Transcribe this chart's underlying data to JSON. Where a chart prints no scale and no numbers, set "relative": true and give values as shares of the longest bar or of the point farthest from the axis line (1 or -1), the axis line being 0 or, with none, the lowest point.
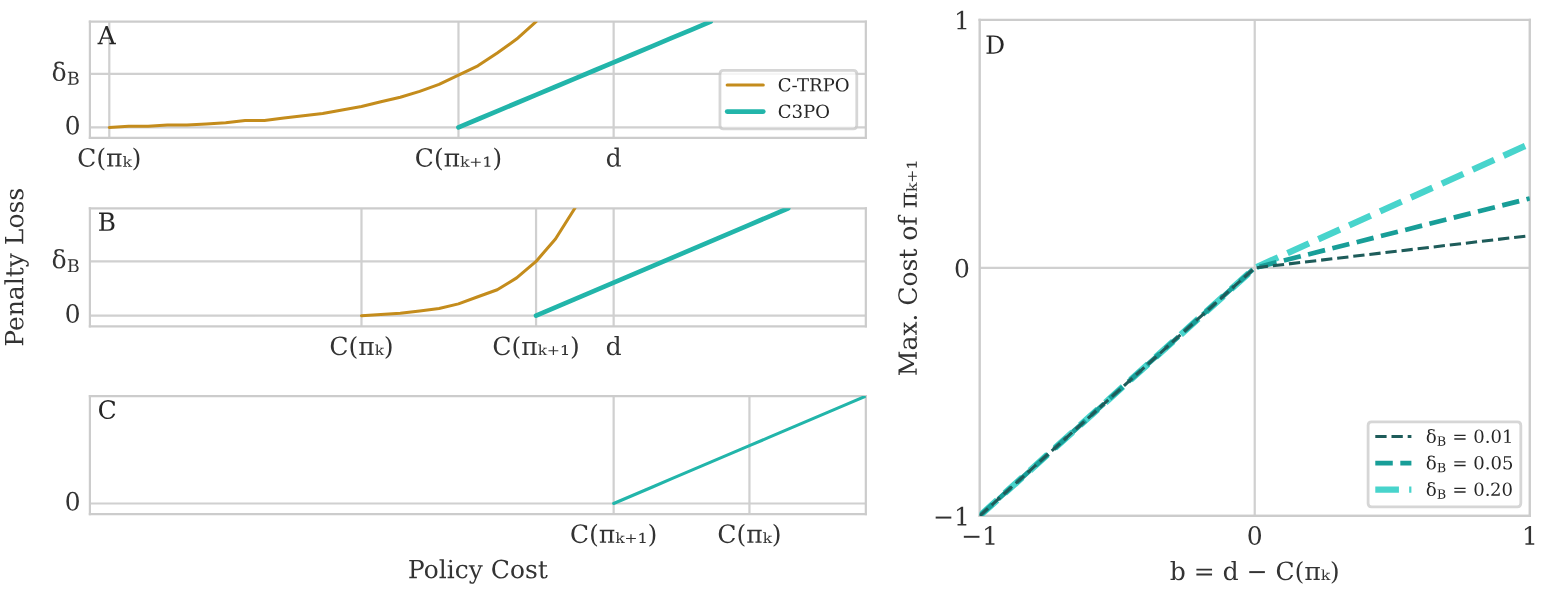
{
  "chart_data": [
    {
      "type": "line",
      "relative": true,
      "annotations": [
        "A"
      ],
      "grid": "x",
      "legend": "bottom right",
      "line_style": "solid",
      "categories": [
        null,
        "C(πₖ)",
        null,
        null,
        null,
        null,
        null,
        null,
        null,
        null,
        null,
        null,
        null,
        null,
        null,
        null,
        null,
        null,
        null,
        "C(πₖ₊₁)",
        null,
        null,
        null,
        null,
        null,
        null,
        null,
        "d",
        null,
        null,
        null,
        null,
        null,
        null,
        null,
        null,
        null,
        null,
        null,
        null,
        null
      ],
      "ref_lines": [
        {
          "axis": "y",
          "value": 0.09,
          "label": "0"
        },
        {
          "axis": "y",
          "value": 0.55,
          "label": "δ$_{B}$"
        }
      ],
      "series": [
        {
          "name": "C-TRPO",
          "color": "#c48c1c",
          "values": [
            null,
            0.09,
            0.1,
            0.1,
            0.11,
            0.11,
            0.12,
            0.13,
            0.15,
            0.15,
            0.17,
            0.19,
            0.21,
            0.24,
            0.27,
            0.31,
            0.35,
            0.4,
            0.46,
            0.54,
            0.62,
            0.73,
            0.85,
            1.0,
            null,
            null,
            null,
            null,
            null,
            null,
            null,
            null,
            null,
            null,
            null,
            null,
            null,
            null,
            null,
            null,
            null
          ]
        },
        {
          "name": "C3PO",
          "color": "#22b5aa",
          "values": [
            null,
            null,
            null,
            null,
            null,
            null,
            null,
            null,
            null,
            null,
            null,
            null,
            null,
            null,
            null,
            null,
            null,
            null,
            null,
            0.09,
            0.16,
            0.23,
            0.3,
            0.37,
            0.44,
            0.51,
            0.58,
            0.65,
            0.72,
            0.79,
            0.86,
            0.93,
            1.0,
            null,
            null,
            null,
            null,
            null,
            null,
            null,
            null
          ]
        }
      ]
    },
    {
      "type": "line",
      "relative": true,
      "annotations": [
        "B"
      ],
      "ylabel": "Penalty Loss",
      "grid": "x",
      "line_style": "solid",
      "categories": [
        null,
        null,
        null,
        null,
        null,
        null,
        null,
        null,
        null,
        null,
        null,
        null,
        null,
        null,
        "C(πₖ)",
        null,
        null,
        null,
        null,
        null,
        null,
        null,
        null,
        "C(πₖ₊₁)",
        null,
        null,
        null,
        "d",
        null,
        null,
        null,
        null,
        null,
        null,
        null,
        null,
        null,
        null,
        null,
        null,
        null
      ],
      "ref_lines": [
        {
          "axis": "y",
          "value": 0.09,
          "label": "0"
        },
        {
          "axis": "y",
          "value": 0.55,
          "label": "δ$_{B}$"
        }
      ],
      "series": [
        {
          "color": "#c48c1c",
          "values": [
            null,
            null,
            null,
            null,
            null,
            null,
            null,
            null,
            null,
            null,
            null,
            null,
            null,
            null,
            0.09,
            0.1,
            0.11,
            0.13,
            0.15,
            0.19,
            0.25,
            0.31,
            0.41,
            0.55,
            0.74,
            1.0,
            null,
            null,
            null,
            null,
            null,
            null,
            null,
            null,
            null,
            null,
            null,
            null,
            null,
            null,
            null
          ]
        },
        {
          "color": "#22b5aa",
          "values": [
            null,
            null,
            null,
            null,
            null,
            null,
            null,
            null,
            null,
            null,
            null,
            null,
            null,
            null,
            null,
            null,
            null,
            null,
            null,
            null,
            null,
            null,
            null,
            0.09,
            0.16,
            0.23,
            0.3,
            0.37,
            0.44,
            0.51,
            0.58,
            0.65,
            0.72,
            0.79,
            0.86,
            0.93,
            1.0,
            null,
            null,
            null,
            null
          ]
        }
      ]
    },
    {
      "type": "line",
      "relative": true,
      "annotations": [
        "C"
      ],
      "xlabel": "Policy Cost",
      "grid": "x",
      "line_style": "solid",
      "categories": [
        null,
        null,
        null,
        null,
        null,
        null,
        null,
        null,
        null,
        null,
        null,
        null,
        null,
        null,
        null,
        null,
        null,
        null,
        null,
        null,
        null,
        null,
        null,
        null,
        null,
        null,
        null,
        "C(πₖ₊₁)",
        null,
        null,
        null,
        null,
        null,
        null,
        "C(πₖ)",
        null,
        null,
        null,
        null,
        null,
        null
      ],
      "ref_lines": [
        {
          "axis": "y",
          "value": 0.09,
          "label": "0"
        }
      ],
      "series": [
        {
          "color": "#22b5aa",
          "values": [
            null,
            null,
            null,
            null,
            null,
            null,
            null,
            null,
            null,
            null,
            null,
            null,
            null,
            null,
            null,
            null,
            null,
            null,
            null,
            null,
            null,
            null,
            null,
            null,
            null,
            null,
            null,
            0.09,
            0.16,
            0.23,
            0.3,
            0.37,
            0.44,
            0.51,
            0.58,
            0.65,
            0.72,
            0.79,
            0.86,
            0.93,
            1.0
          ]
        }
      ]
    },
    {
      "type": "line",
      "annotations": [
        "D"
      ],
      "xlabel": "b = d − C(πₖ)",
      "ylabel": "Max. Cost of πₖ₊₁",
      "xlim": [
        -1,
        1
      ],
      "ylim": [
        -1,
        1
      ],
      "xticks": [
        {
          "value": -1,
          "label": "−1"
        },
        0,
        1
      ],
      "yticks": [
        {
          "value": -1,
          "label": "−1"
        },
        0,
        1
      ],
      "grid": true,
      "legend": "bottom right",
      "line_style": "dashed",
      "series": [
        {
          "name": "δ$_{B}$ = 0.01",
          "color": "#1e5c5a",
          "x": [
            -1,
            0,
            1
          ],
          "values": [
            -1,
            0,
            0.13
          ]
        },
        {
          "name": "δ$_{B}$ = 0.05",
          "color": "#189e98",
          "x": [
            -1,
            0,
            1
          ],
          "values": [
            -1,
            0,
            0.28
          ]
        },
        {
          "name": "δ$_{B}$ = 0.20",
          "color": "#48d4cc",
          "x": [
            -1,
            0,
            1
          ],
          "values": [
            -1,
            0,
            0.5
          ]
        }
      ]
    }
  ]
}
